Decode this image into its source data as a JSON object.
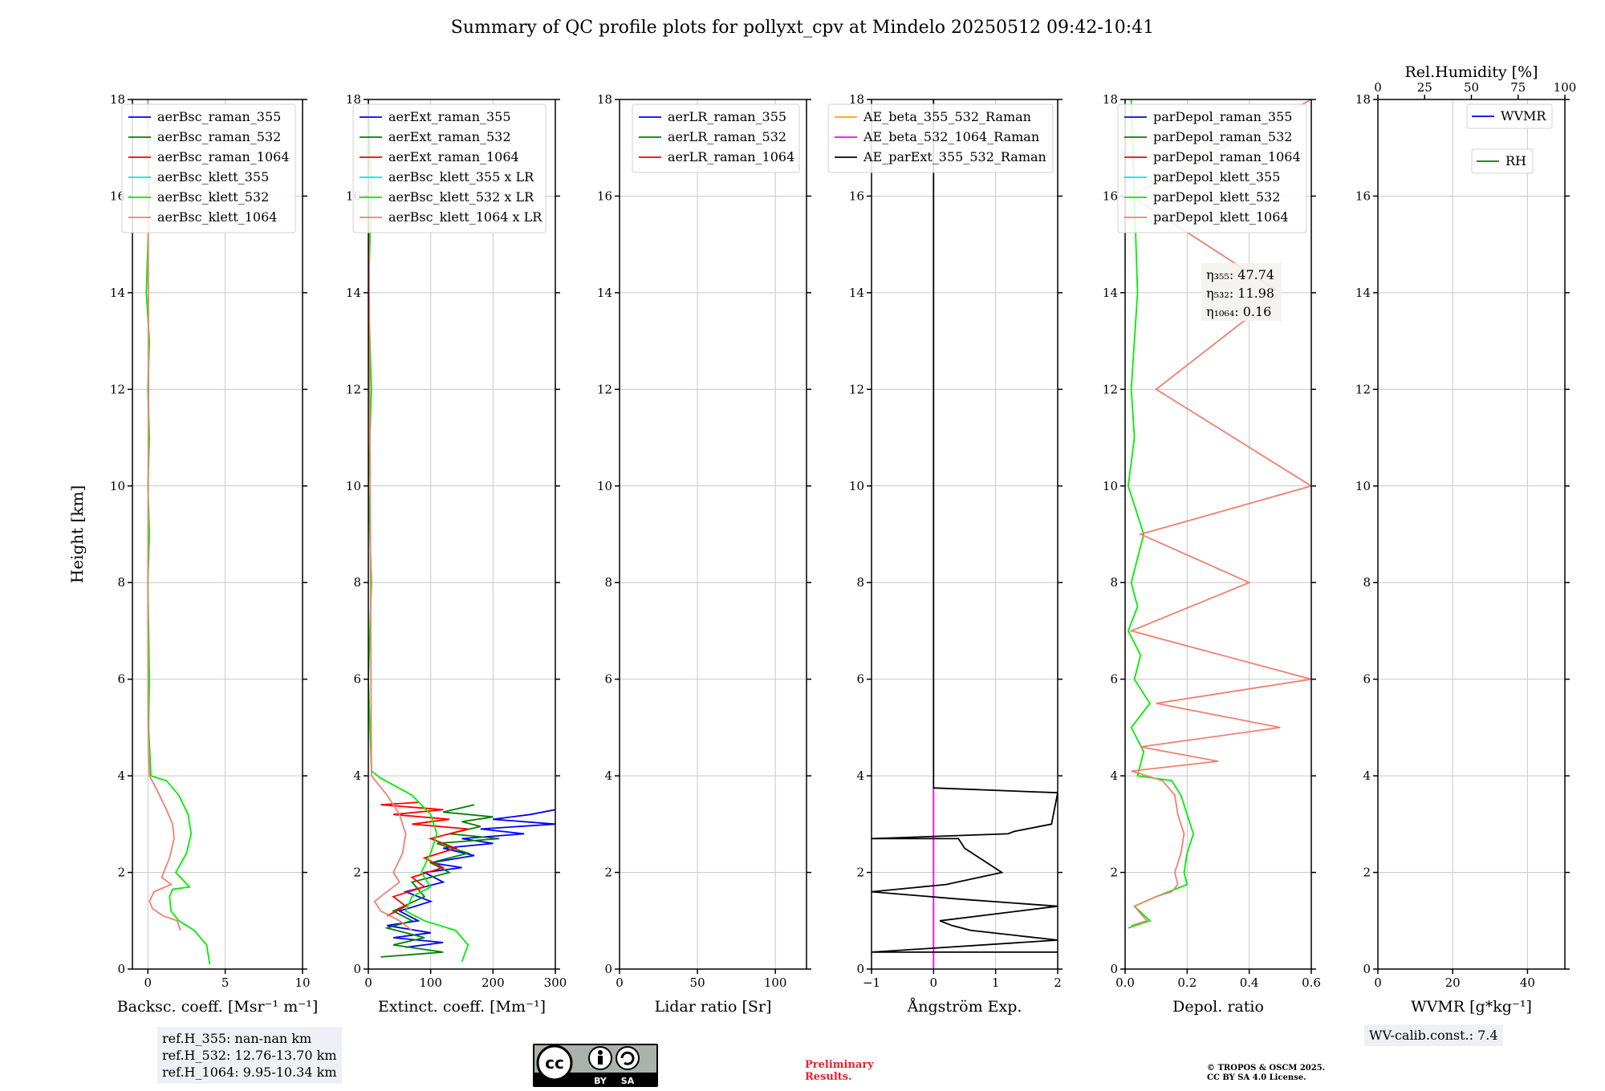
{
  "title": "Summary of QC profile plots for pollyxt_cpv at Mindelo 20250512 09:42-10:41",
  "chart_data": [
    {
      "type": "line",
      "name": "backscatter",
      "xlabel": "Backsc. coeff. [Msr⁻¹ m⁻¹]",
      "ylabel": "Height [km]",
      "xlim": [
        -1,
        10
      ],
      "ylim": [
        0,
        18
      ],
      "xticks": [
        0,
        5,
        10
      ],
      "yticks": [
        0,
        2,
        4,
        6,
        8,
        10,
        12,
        14,
        16,
        18
      ],
      "legend": "top-left",
      "series": [
        {
          "name": "aerBsc_raman_355",
          "color": "#0000ff",
          "x": [],
          "y": []
        },
        {
          "name": "aerBsc_raman_532",
          "color": "#008000",
          "x": [],
          "y": []
        },
        {
          "name": "aerBsc_raman_1064",
          "color": "#ff0000",
          "x": [],
          "y": []
        },
        {
          "name": "aerBsc_klett_355",
          "color": "#00e5ff",
          "x": [],
          "y": []
        },
        {
          "name": "aerBsc_klett_532",
          "color": "#00ee00",
          "x": [
            4.0,
            3.8,
            3.0,
            2.0,
            1.5,
            1.4,
            1.6,
            2.7,
            1.8,
            2.5,
            2.8,
            2.6,
            2.0,
            1.2,
            0.2,
            0.05,
            0.1,
            0.0,
            0.1,
            0.0,
            0.1,
            0.0,
            0.1,
            -0.1,
            0.1,
            0.0
          ],
          "y": [
            0.1,
            0.5,
            0.8,
            1.0,
            1.2,
            1.5,
            1.65,
            1.7,
            2.0,
            2.4,
            2.8,
            3.2,
            3.6,
            3.9,
            4.0,
            5.0,
            6.0,
            8.0,
            9.0,
            10.0,
            11.0,
            12.0,
            13.0,
            14.0,
            16.0,
            18.0
          ]
        },
        {
          "name": "aerBsc_klett_1064",
          "color": "#f08070",
          "x": [
            2.1,
            1.9,
            1.0,
            0.3,
            0.1,
            0.4,
            1.5,
            0.9,
            1.4,
            1.7,
            1.6,
            1.2,
            0.6,
            0.1,
            0.02,
            0.0,
            0.05,
            0.0
          ],
          "y": [
            0.8,
            1.0,
            1.1,
            1.25,
            1.4,
            1.6,
            1.75,
            1.9,
            2.3,
            2.7,
            3.0,
            3.3,
            3.7,
            4.0,
            5.0,
            8.0,
            12.0,
            18.0
          ]
        }
      ],
      "ref_heights": {
        "ref_355": "ref.H_355: nan-nan km",
        "ref_532": "ref.H_532: 12.76-13.70 km",
        "ref_1064": "ref.H_1064: 9.95-10.34 km"
      }
    },
    {
      "type": "line",
      "name": "extinction",
      "xlabel": "Extinct. coeff. [Mm⁻¹]",
      "xlim": [
        0,
        300
      ],
      "ylim": [
        0,
        18
      ],
      "xticks": [
        0,
        100,
        200,
        300
      ],
      "yticks": [
        0,
        2,
        4,
        6,
        8,
        10,
        12,
        14,
        16,
        18
      ],
      "legend": "top-left",
      "series": [
        {
          "name": "aerExt_raman_355",
          "color": "#0000ff",
          "x": [
            60,
            120,
            40,
            100,
            30,
            80,
            50,
            100,
            60,
            120,
            90,
            150,
            100,
            170,
            120,
            200,
            150,
            250,
            180,
            300,
            200,
            260,
            300
          ],
          "y": [
            0.45,
            0.55,
            0.65,
            0.75,
            0.9,
            1.0,
            1.2,
            1.4,
            1.6,
            1.8,
            2.0,
            2.1,
            2.2,
            2.35,
            2.5,
            2.6,
            2.7,
            2.8,
            2.9,
            3.0,
            3.1,
            3.2,
            3.3
          ]
        },
        {
          "name": "aerExt_raman_532",
          "color": "#008000",
          "x": [
            20,
            120,
            40,
            90,
            30,
            70,
            40,
            90,
            70,
            130,
            100,
            160,
            110,
            210,
            130,
            180,
            150,
            200,
            120,
            170
          ],
          "y": [
            0.25,
            0.35,
            0.5,
            0.65,
            0.85,
            1.0,
            1.2,
            1.5,
            1.8,
            2.0,
            2.2,
            2.4,
            2.6,
            2.7,
            2.8,
            2.95,
            3.05,
            3.15,
            3.25,
            3.4
          ]
        },
        {
          "name": "aerExt_raman_1064",
          "color": "#ff0000",
          "x": [
            30,
            60,
            40,
            90,
            70,
            120,
            90,
            140,
            100,
            160,
            70,
            130,
            40,
            120,
            20,
            80
          ],
          "y": [
            1.1,
            1.3,
            1.5,
            1.7,
            1.9,
            2.1,
            2.3,
            2.5,
            2.7,
            2.9,
            3.0,
            3.1,
            3.2,
            3.3,
            3.4,
            3.45
          ]
        },
        {
          "name": "aerBsc_klett_355 x LR",
          "color": "#00e5ff",
          "x": [],
          "y": []
        },
        {
          "name": "aerBsc_klett_532 x LR",
          "color": "#00ee00",
          "x": [
            150,
            160,
            140,
            90,
            60,
            70,
            100,
            85,
            100,
            110,
            100,
            70,
            20,
            5,
            0,
            5,
            0,
            5,
            0,
            5,
            0
          ],
          "y": [
            0.15,
            0.5,
            0.8,
            1.0,
            1.2,
            1.5,
            1.7,
            2.0,
            2.4,
            2.8,
            3.2,
            3.6,
            3.95,
            4.1,
            6.0,
            8.0,
            10.0,
            12.0,
            14.0,
            16.0,
            18.0
          ]
        },
        {
          "name": "aerBsc_klett_1064 x LR",
          "color": "#f08070",
          "x": [
            70,
            50,
            20,
            10,
            30,
            50,
            40,
            55,
            60,
            50,
            30,
            5,
            0
          ],
          "y": [
            0.8,
            1.0,
            1.2,
            1.4,
            1.6,
            1.8,
            2.0,
            2.4,
            2.8,
            3.2,
            3.6,
            4.0,
            18.0
          ]
        }
      ]
    },
    {
      "type": "line",
      "name": "lidar_ratio",
      "xlabel": "Lidar ratio [Sr]",
      "xlim": [
        0,
        120
      ],
      "ylim": [
        0,
        18
      ],
      "xticks": [
        0,
        50,
        100
      ],
      "yticks": [
        0,
        2,
        4,
        6,
        8,
        10,
        12,
        14,
        16,
        18
      ],
      "legend": "top-right",
      "series": [
        {
          "name": "aerLR_raman_355",
          "color": "#0000ff",
          "x": [],
          "y": []
        },
        {
          "name": "aerLR_raman_532",
          "color": "#008000",
          "x": [],
          "y": []
        },
        {
          "name": "aerLR_raman_1064",
          "color": "#ff0000",
          "x": [],
          "y": []
        }
      ]
    },
    {
      "type": "line",
      "name": "angstrom",
      "xlabel": "Ångström Exp.",
      "xlim": [
        -1,
        2
      ],
      "ylim": [
        0,
        18
      ],
      "xticks": [
        -1,
        0,
        1,
        2
      ],
      "xtick_labels": [
        "−1",
        "0",
        "1",
        "2"
      ],
      "yticks": [
        0,
        2,
        4,
        6,
        8,
        10,
        12,
        14,
        16,
        18
      ],
      "legend": "top-left",
      "series": [
        {
          "name": "AE_beta_355_532_Raman",
          "color": "#ffa500",
          "x": [],
          "y": []
        },
        {
          "name": "AE_beta_532_1064_Raman",
          "color": "#ff00ff",
          "x": [
            0,
            0
          ],
          "y": [
            0,
            3.75
          ]
        },
        {
          "name": "AE_parExt_355_532_Raman",
          "color": "#000000",
          "x": [
            2,
            -1,
            2,
            0.6,
            0.3,
            0.1,
            2,
            0.4,
            -1,
            0.2,
            1.1,
            0.5,
            0.4,
            -0.1,
            -1,
            1.2,
            1.3,
            1.9,
            2.0,
            0.0,
            0.0
          ],
          "y": [
            0.35,
            0.35,
            0.6,
            0.8,
            0.9,
            1.0,
            1.3,
            1.45,
            1.6,
            1.75,
            2.0,
            2.5,
            2.7,
            2.7,
            2.7,
            2.8,
            2.85,
            3.0,
            3.65,
            3.75,
            18.0
          ]
        }
      ]
    },
    {
      "type": "line",
      "name": "depolarization",
      "xlabel": "Depol. ratio",
      "xlim": [
        0,
        0.6
      ],
      "ylim": [
        0,
        18
      ],
      "xticks": [
        0,
        0.2,
        0.4,
        0.6
      ],
      "xtick_labels": [
        "0.0",
        "0.2",
        "0.4",
        "0.6"
      ],
      "yticks": [
        0,
        2,
        4,
        6,
        8,
        10,
        12,
        14,
        16,
        18
      ],
      "legend": "top-left",
      "series": [
        {
          "name": "parDepol_raman_355",
          "color": "#0000ff",
          "x": [],
          "y": []
        },
        {
          "name": "parDepol_raman_532",
          "color": "#008000",
          "x": [],
          "y": []
        },
        {
          "name": "parDepol_raman_1064",
          "color": "#ff0000",
          "x": [],
          "y": []
        },
        {
          "name": "parDepol_klett_355",
          "color": "#00e5ff",
          "x": [],
          "y": []
        },
        {
          "name": "parDepol_klett_532",
          "color": "#00ee00",
          "x": [
            0.01,
            0.08,
            0.03,
            0.1,
            0.16,
            0.2,
            0.19,
            0.2,
            0.22,
            0.2,
            0.18,
            0.15,
            0.04,
            0.06,
            0.02,
            0.08,
            0.03,
            0.05,
            0.01,
            0.04,
            0.02,
            0.06,
            0.01,
            0.03,
            0.02,
            0.03,
            0.04,
            0.02
          ],
          "y": [
            0.85,
            1.0,
            1.3,
            1.5,
            1.65,
            1.75,
            2.0,
            2.4,
            2.8,
            3.2,
            3.6,
            3.9,
            4.0,
            4.5,
            5.0,
            5.5,
            6.0,
            6.5,
            7.0,
            7.5,
            8.0,
            9.0,
            10.0,
            11.0,
            12.0,
            13.0,
            14.0,
            18.0
          ]
        },
        {
          "name": "parDepol_klett_1064",
          "color": "#f08070",
          "x": [
            0.02,
            0.07,
            0.03,
            0.1,
            0.15,
            0.17,
            0.16,
            0.18,
            0.19,
            0.17,
            0.16,
            0.12,
            0.02,
            0.3,
            0.05,
            0.5,
            0.1,
            0.6,
            0.02,
            0.4,
            0.05,
            0.6,
            0.1,
            0.5,
            0.02,
            0.6
          ],
          "y": [
            0.9,
            1.0,
            1.3,
            1.5,
            1.6,
            1.75,
            2.0,
            2.4,
            2.8,
            3.2,
            3.6,
            3.9,
            4.1,
            4.3,
            4.6,
            5.0,
            5.5,
            6.0,
            7.0,
            8.0,
            9.0,
            10.0,
            12.0,
            14.0,
            16.0,
            18.0
          ]
        }
      ],
      "annotation": [
        "η₃₅₅: 47.74",
        "η₅₃₂: 11.98",
        "η₁₀₆₄: 0.16"
      ]
    },
    {
      "type": "line",
      "name": "water_vapor",
      "xlabel": "WVMR [g*kg⁻¹]",
      "top_xlabel": "Rel.Humidity [%]",
      "xlim": [
        0,
        50
      ],
      "top_xlim": [
        0,
        100
      ],
      "ylim": [
        0,
        18
      ],
      "xticks": [
        0,
        20,
        40
      ],
      "top_xticks": [
        0,
        25,
        50,
        75,
        100
      ],
      "yticks": [
        0,
        2,
        4,
        6,
        8,
        10,
        12,
        14,
        16,
        18
      ],
      "series": [
        {
          "name": "WVMR",
          "color": "#0000ff",
          "x": [],
          "y": []
        },
        {
          "name": "RH",
          "color": "#008000",
          "x": [],
          "y": []
        }
      ],
      "calib": "WV-calib.const.: 7.4"
    }
  ],
  "footer": {
    "preliminary_line1": "Preliminary",
    "preliminary_line2": "Results.",
    "copyright_line1": "© TROPOS & OSCM 2025.",
    "copyright_line2": "CC BY SA 4.0 License.",
    "cc_badge": {
      "by": "BY",
      "sa": "SA",
      "cc": "cc"
    }
  }
}
